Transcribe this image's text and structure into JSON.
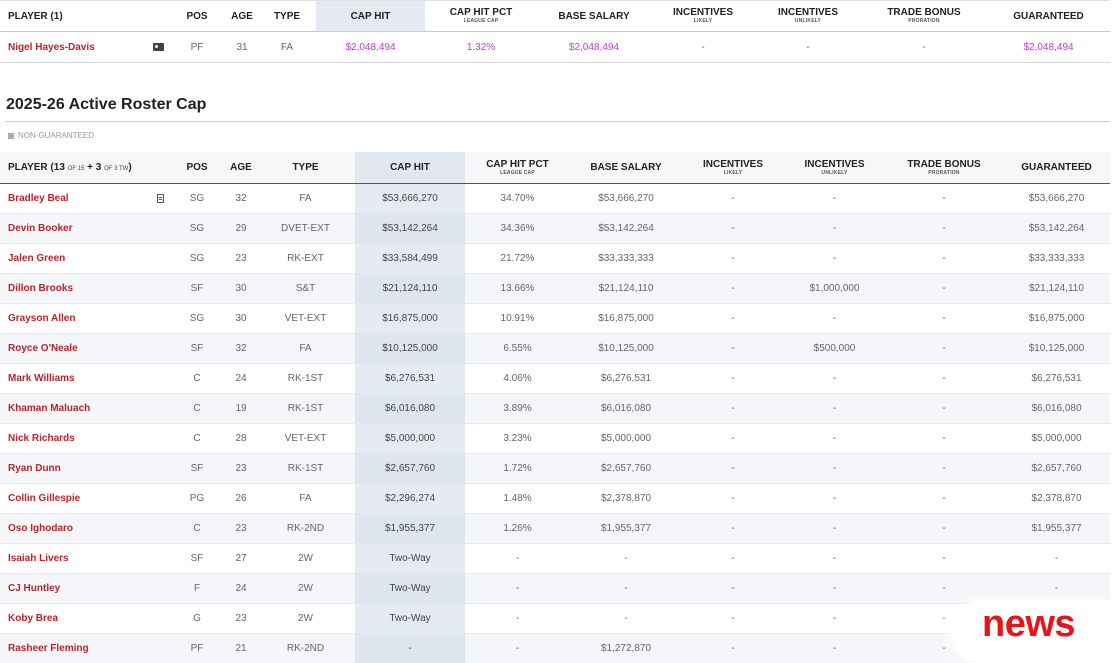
{
  "top_table": {
    "headers": {
      "player": "PLAYER (1)",
      "pos": "POS",
      "age": "AGE",
      "type": "TYPE",
      "cap_hit": "CAP HIT",
      "cap_hit_pct": "CAP HIT PCT",
      "cap_hit_pct_sub": "LEAGUE CAP",
      "base_salary": "BASE SALARY",
      "incentives_likely": "INCENTIVES",
      "incentives_likely_sub": "LIKELY",
      "incentives_unlikely": "INCENTIVES",
      "incentives_unlikely_sub": "UNLIKELY",
      "trade_bonus": "TRADE BONUS",
      "trade_bonus_sub": "PRORATION",
      "guaranteed": "GUARANTEED"
    },
    "row": {
      "name": "Nigel Hayes-Davis",
      "icon": "tag-icon",
      "pos": "PF",
      "age": "31",
      "type": "FA",
      "cap_hit": "$2,048,494",
      "cap_hit_pct": "1.32%",
      "base_salary": "$2,048,494",
      "inc_likely": "-",
      "inc_unlikely": "-",
      "trade_bonus": "-",
      "guaranteed": "$2,048,494"
    }
  },
  "section": {
    "title": "2025-26 Active Roster Cap",
    "legend": "NON-GUARANTEED"
  },
  "roster": {
    "headers": {
      "player_prefix": "PLAYER (",
      "count_main": "13",
      "of_main": "OF 15",
      "plus": "+",
      "count_tw": "3",
      "of_tw": "OF 3 TW",
      "player_suffix": ")",
      "pos": "POS",
      "age": "AGE",
      "type": "TYPE",
      "cap_hit": "CAP HIT",
      "cap_hit_pct": "CAP HIT PCT",
      "cap_hit_pct_sub": "LEAGUE CAP",
      "base_salary": "BASE SALARY",
      "incentives_likely": "INCENTIVES",
      "incentives_likely_sub": "LIKELY",
      "incentives_unlikely": "INCENTIVES",
      "incentives_unlikely_sub": "UNLIKELY",
      "trade_bonus": "TRADE BONUS",
      "trade_bonus_sub": "PRORATION",
      "guaranteed": "GUARANTEED"
    },
    "rows": [
      {
        "name": "Bradley Beal",
        "icon": "document-icon",
        "pos": "SG",
        "age": "32",
        "type": "FA",
        "cap_hit": "$53,666,270",
        "pct": "34.70%",
        "base": "$53,666,270",
        "likely": "-",
        "unlikely": "-",
        "trade": "-",
        "guaranteed": "$53,666,270"
      },
      {
        "name": "Devin Booker",
        "icon": "",
        "pos": "SG",
        "age": "29",
        "type": "DVET-EXT",
        "cap_hit": "$53,142,264",
        "pct": "34.36%",
        "base": "$53,142,264",
        "likely": "-",
        "unlikely": "-",
        "trade": "-",
        "guaranteed": "$53,142,264"
      },
      {
        "name": "Jalen Green",
        "icon": "",
        "pos": "SG",
        "age": "23",
        "type": "RK-EXT",
        "cap_hit": "$33,584,499",
        "pct": "21.72%",
        "base": "$33,333,333",
        "likely": "-",
        "unlikely": "-",
        "trade": "-",
        "guaranteed": "$33,333,333"
      },
      {
        "name": "Dillon Brooks",
        "icon": "",
        "pos": "SF",
        "age": "30",
        "type": "S&T",
        "cap_hit": "$21,124,110",
        "pct": "13.66%",
        "base": "$21,124,110",
        "likely": "-",
        "unlikely": "$1,000,000",
        "trade": "-",
        "guaranteed": "$21,124,110"
      },
      {
        "name": "Grayson Allen",
        "icon": "",
        "pos": "SG",
        "age": "30",
        "type": "VET-EXT",
        "cap_hit": "$16,875,000",
        "pct": "10.91%",
        "base": "$16,875,000",
        "likely": "-",
        "unlikely": "-",
        "trade": "-",
        "guaranteed": "$16,875,000"
      },
      {
        "name": "Royce O'Neale",
        "icon": "",
        "pos": "SF",
        "age": "32",
        "type": "FA",
        "cap_hit": "$10,125,000",
        "pct": "6.55%",
        "base": "$10,125,000",
        "likely": "-",
        "unlikely": "$500,000",
        "trade": "-",
        "guaranteed": "$10,125,000"
      },
      {
        "name": "Mark Williams",
        "icon": "",
        "pos": "C",
        "age": "24",
        "type": "RK-1ST",
        "cap_hit": "$6,276,531",
        "pct": "4.06%",
        "base": "$6,276,531",
        "likely": "-",
        "unlikely": "-",
        "trade": "-",
        "guaranteed": "$6,276,531"
      },
      {
        "name": "Khaman Maluach",
        "icon": "",
        "pos": "C",
        "age": "19",
        "type": "RK-1ST",
        "cap_hit": "$6,016,080",
        "pct": "3.89%",
        "base": "$6,016,080",
        "likely": "-",
        "unlikely": "-",
        "trade": "-",
        "guaranteed": "$6,016,080"
      },
      {
        "name": "Nick Richards",
        "icon": "",
        "pos": "C",
        "age": "28",
        "type": "VET-EXT",
        "cap_hit": "$5,000,000",
        "pct": "3.23%",
        "base": "$5,000,000",
        "likely": "-",
        "unlikely": "-",
        "trade": "-",
        "guaranteed": "$5,000,000"
      },
      {
        "name": "Ryan Dunn",
        "icon": "",
        "pos": "SF",
        "age": "23",
        "type": "RK-1ST",
        "cap_hit": "$2,657,760",
        "pct": "1.72%",
        "base": "$2,657,760",
        "likely": "-",
        "unlikely": "-",
        "trade": "-",
        "guaranteed": "$2,657,760"
      },
      {
        "name": "Collin Gillespie",
        "icon": "",
        "pos": "PG",
        "age": "26",
        "type": "FA",
        "cap_hit": "$2,296,274",
        "pct": "1.48%",
        "base": "$2,378,870",
        "likely": "-",
        "unlikely": "-",
        "trade": "-",
        "guaranteed": "$2,378,870"
      },
      {
        "name": "Oso Ighodaro",
        "icon": "",
        "pos": "C",
        "age": "23",
        "type": "RK-2ND",
        "cap_hit": "$1,955,377",
        "pct": "1.26%",
        "base": "$1,955,377",
        "likely": "-",
        "unlikely": "-",
        "trade": "-",
        "guaranteed": "$1,955,377"
      },
      {
        "name": "Isaiah Livers",
        "icon": "",
        "pos": "SF",
        "age": "27",
        "type": "2W",
        "cap_hit": "Two-Way",
        "pct": "-",
        "base": "-",
        "likely": "-",
        "unlikely": "-",
        "trade": "-",
        "guaranteed": "-"
      },
      {
        "name": "CJ Huntley",
        "icon": "",
        "pos": "F",
        "age": "24",
        "type": "2W",
        "cap_hit": "Two-Way",
        "pct": "-",
        "base": "-",
        "likely": "-",
        "unlikely": "-",
        "trade": "-",
        "guaranteed": "-"
      },
      {
        "name": "Koby Brea",
        "icon": "",
        "pos": "G",
        "age": "23",
        "type": "2W",
        "cap_hit": "Two-Way",
        "pct": "-",
        "base": "-",
        "likely": "-",
        "unlikely": "-",
        "trade": "-",
        "guaranteed": "-"
      },
      {
        "name": "Rasheer Fleming",
        "icon": "",
        "pos": "PF",
        "age": "21",
        "type": "RK-2ND",
        "cap_hit": "-",
        "pct": "-",
        "base": "$1,272,870",
        "likely": "-",
        "unlikely": "-",
        "trade": "-",
        "guaranteed": "-"
      }
    ]
  },
  "watermark": {
    "text": "news"
  },
  "colors": {
    "player_link": "#b3262d",
    "top_values": "#c23ad6",
    "cap_column": "#e4e9f2",
    "watermark": "#e8141b"
  }
}
